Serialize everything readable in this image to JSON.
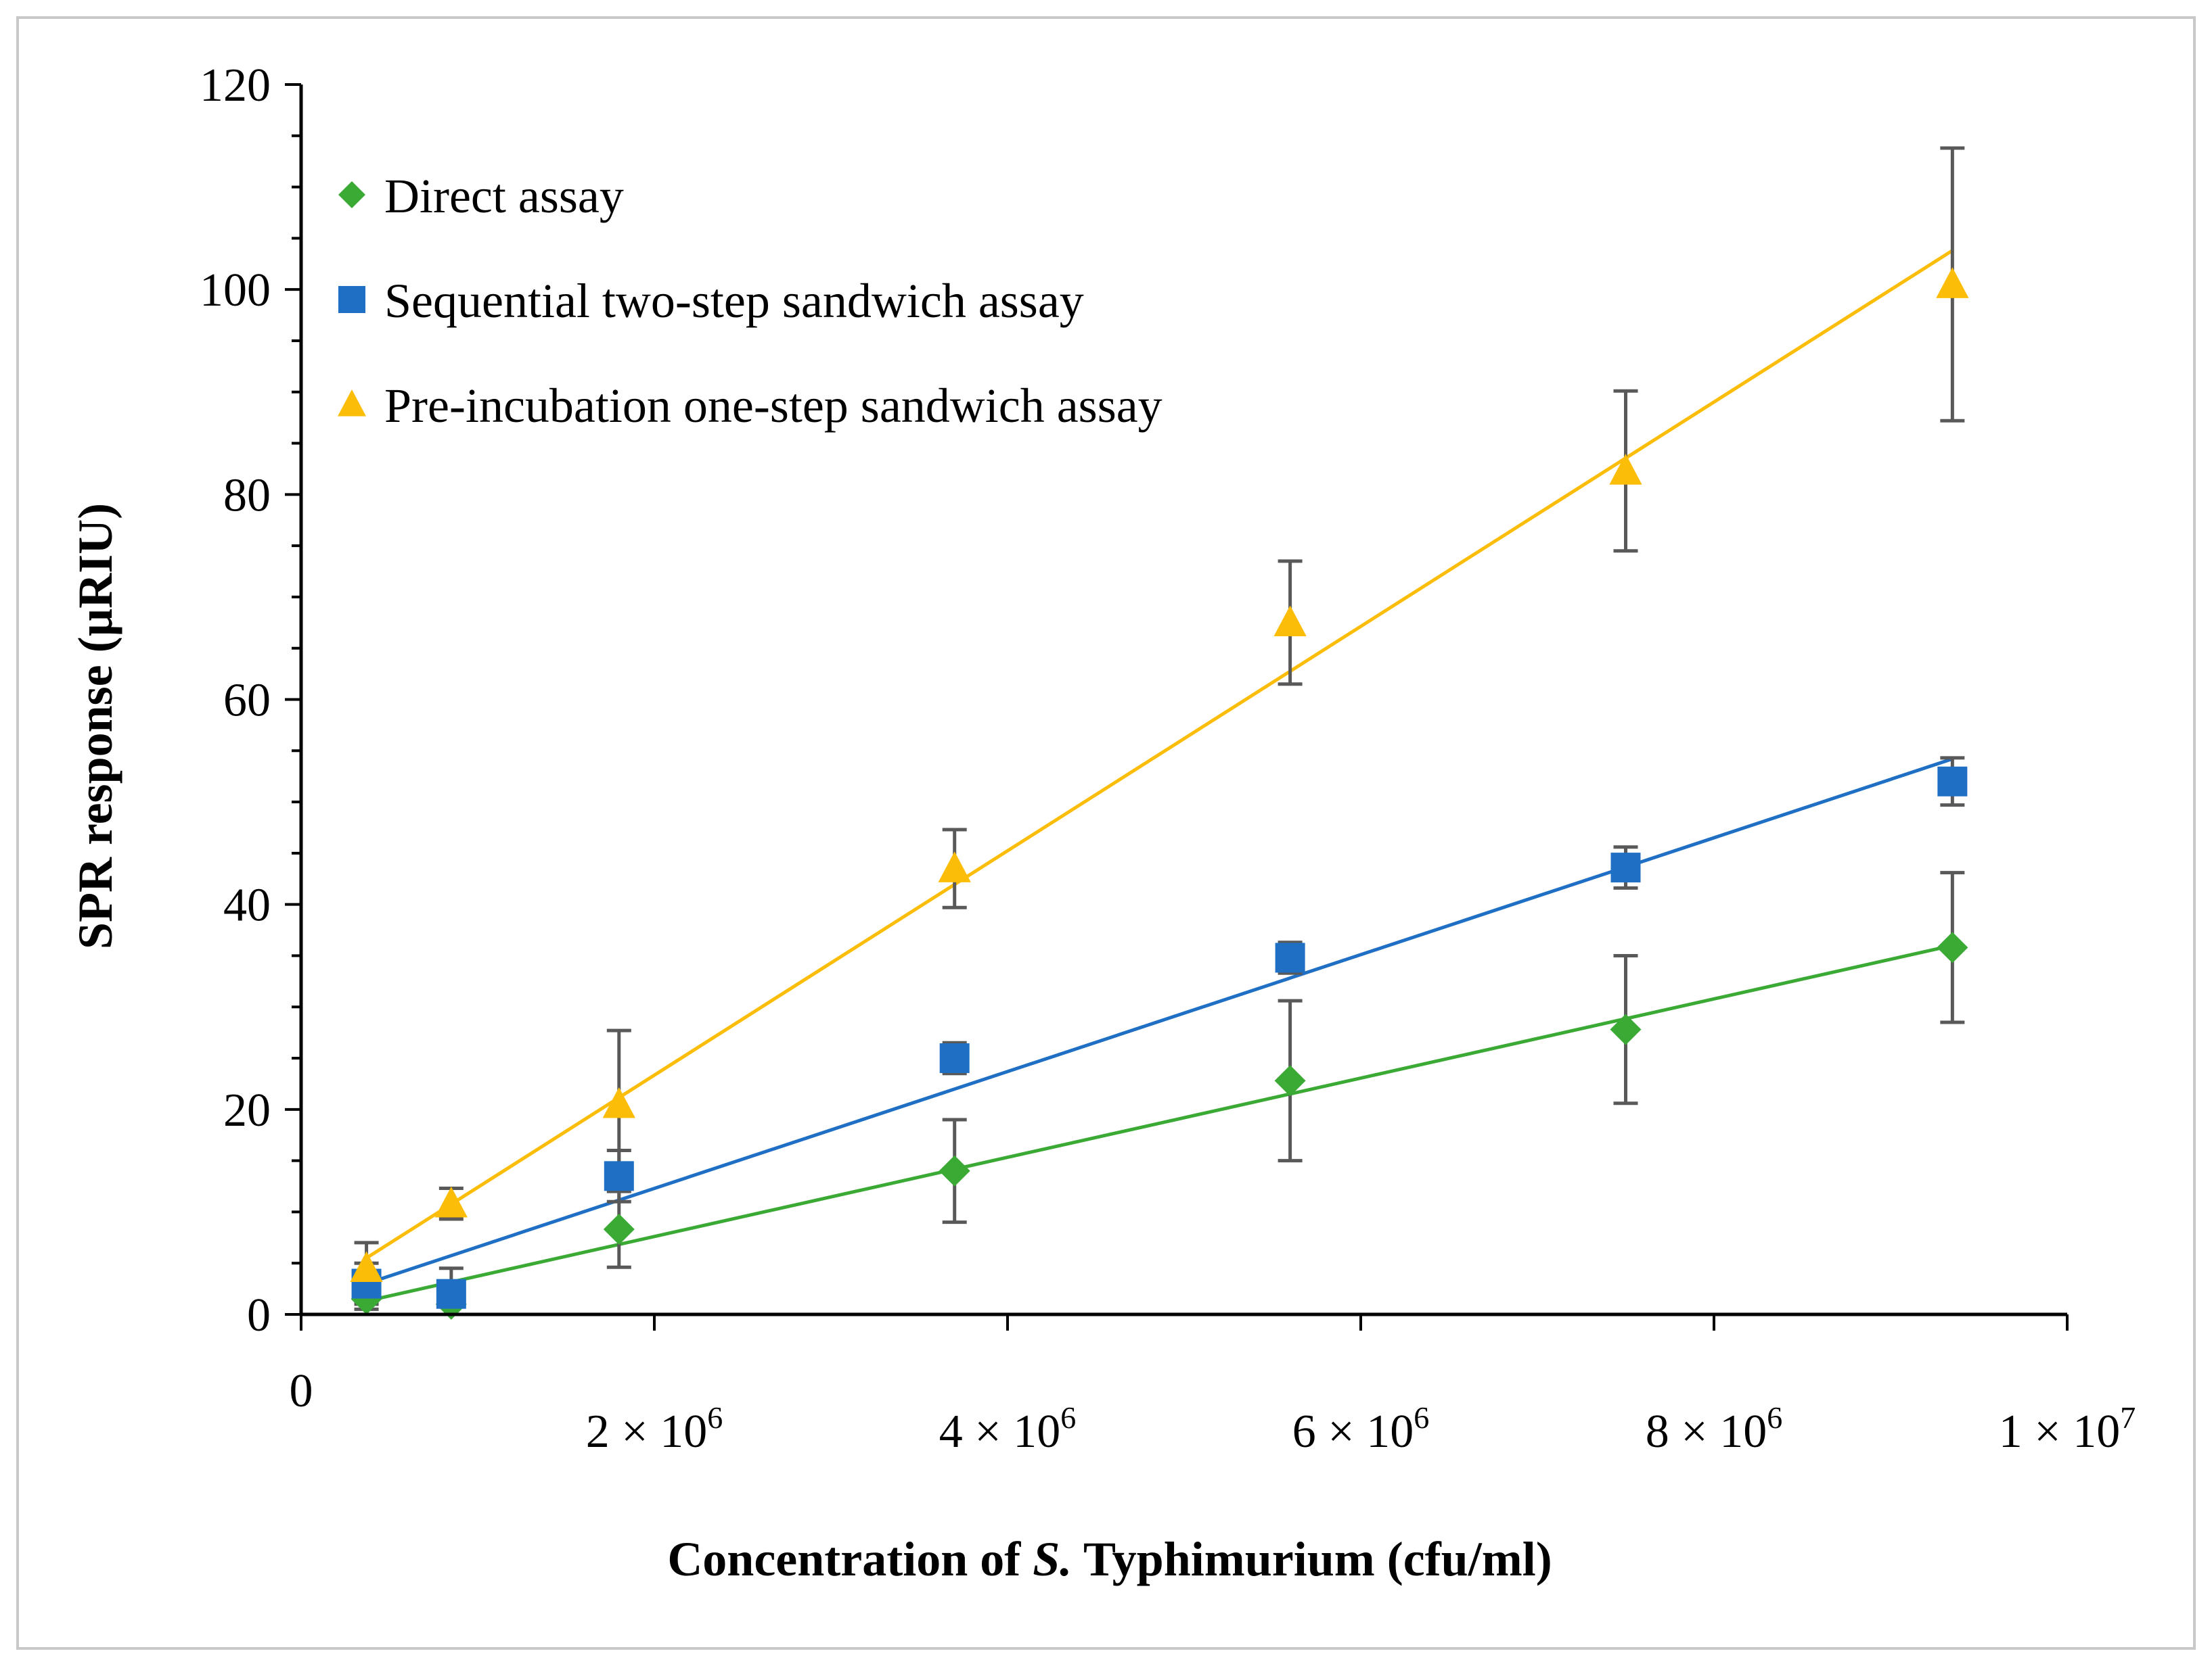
{
  "chart_data": {
    "type": "scatter",
    "xlabel_prefix": "Concentration of ",
    "xlabel_italic": "S.",
    "xlabel_suffix": " Typhimurium (cfu/ml)",
    "ylabel": "SPR response (µRIU)",
    "xlim": [
      0,
      10000000
    ],
    "ylim": [
      0,
      120
    ],
    "x_ticks": [
      {
        "value": 0,
        "mant": "0",
        "exp": ""
      },
      {
        "value": 2000000,
        "mant": "2 × 10",
        "exp": "6"
      },
      {
        "value": 4000000,
        "mant": "4 × 10",
        "exp": "6"
      },
      {
        "value": 6000000,
        "mant": "6 × 10",
        "exp": "6"
      },
      {
        "value": 8000000,
        "mant": "8 × 10",
        "exp": "6"
      },
      {
        "value": 10000000,
        "mant": "1 × 10",
        "exp": "7"
      }
    ],
    "y_ticks": [
      "0",
      "20",
      "40",
      "60",
      "80",
      "100",
      "120"
    ],
    "legend_position": "top-left",
    "series": [
      {
        "name": "Direct assay",
        "marker": "diamond",
        "color": "#3aaa35",
        "x": [
          370000,
          850000,
          1800000,
          3700000,
          5600000,
          7500000,
          9350000
        ],
        "y": [
          1.5,
          1.0,
          8.3,
          14.0,
          22.8,
          27.8,
          35.8
        ],
        "err": [
          1.0,
          1.5,
          3.7,
          5.0,
          7.8,
          7.2,
          7.3
        ],
        "fit": [
          [
            370000,
            1.3
          ],
          [
            9350000,
            36.0
          ]
        ]
      },
      {
        "name": "Sequential two-step sandwich assay",
        "marker": "square",
        "color": "#1f6fc5",
        "x": [
          370000,
          850000,
          1800000,
          3700000,
          5600000,
          7500000,
          9350000
        ],
        "y": [
          3.0,
          2.0,
          13.5,
          25.0,
          34.8,
          43.6,
          52.0
        ],
        "err": [
          2.0,
          2.5,
          2.5,
          1.5,
          1.5,
          2.0,
          2.3
        ],
        "fit": [
          [
            370000,
            3.0
          ],
          [
            9350000,
            54.2
          ]
        ]
      },
      {
        "name": "Pre-incubation one-step sandwich assay",
        "marker": "triangle",
        "color": "#fbbd08",
        "x": [
          370000,
          850000,
          1800000,
          3700000,
          5600000,
          7500000,
          9350000
        ],
        "y": [
          4.5,
          10.8,
          20.5,
          43.5,
          67.5,
          82.3,
          100.5
        ],
        "err": [
          2.5,
          1.5,
          7.2,
          3.8,
          6.0,
          7.8,
          13.3
        ],
        "fit": [
          [
            370000,
            5.5
          ],
          [
            9350000,
            103.8
          ]
        ]
      }
    ],
    "colors": {
      "axis": "#000000",
      "error_bar": "#595959",
      "frame": "#c8c8c8"
    }
  }
}
